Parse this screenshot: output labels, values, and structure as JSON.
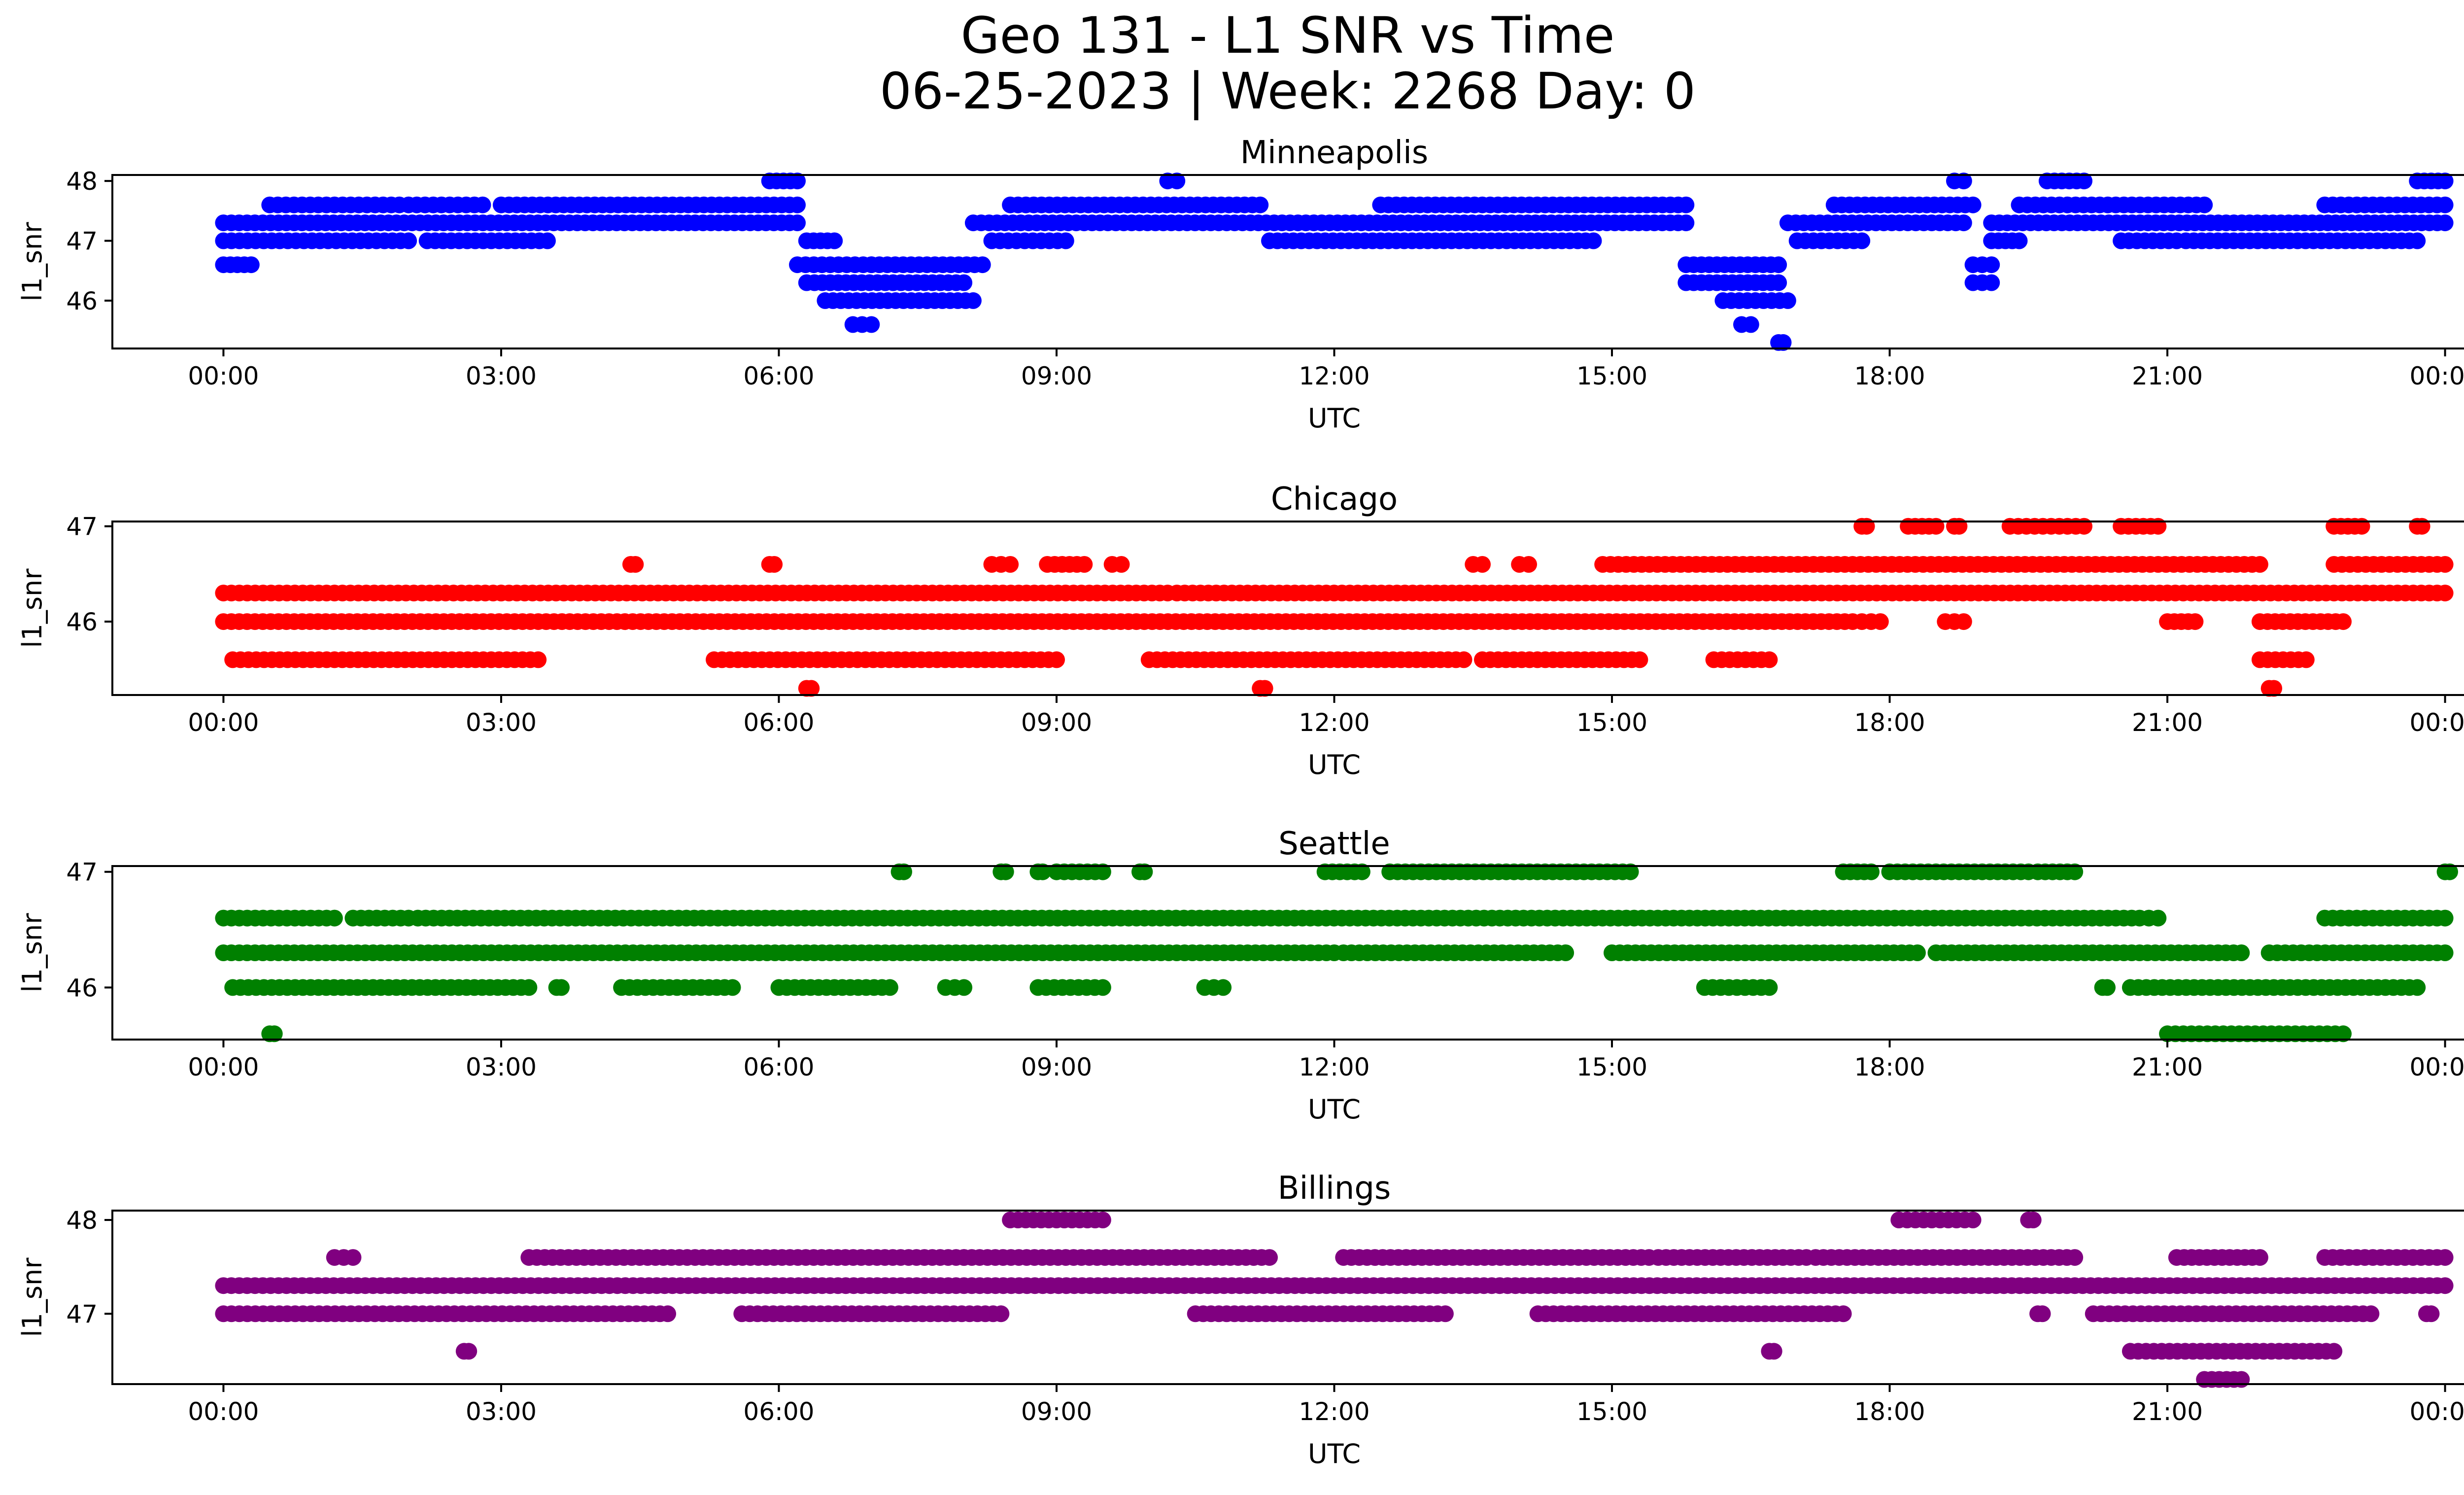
{
  "figure": {
    "title_line1": "Geo 131 - L1 SNR vs Time",
    "title_line2": "06-25-2023 | Week: 2268 Day: 0"
  },
  "chart_data": [
    {
      "type": "scatter",
      "title": "Minneapolis",
      "xlabel": "UTC",
      "ylabel": "l1_snr",
      "color": "#0000ff",
      "ylim": [
        45.2,
        48.1
      ],
      "yticks": [
        46,
        47,
        48
      ],
      "xticks": [
        "00:00",
        "03:00",
        "06:00",
        "09:00",
        "12:00",
        "15:00",
        "18:00",
        "21:00",
        "00:00"
      ],
      "xlim_hours": [
        -1.2,
        25.2
      ],
      "levels": [
        {
          "y": 46.6,
          "x_ranges": [
            [
              0.0,
              0.3
            ],
            [
              6.2,
              7.0
            ],
            [
              7.0,
              8.2
            ],
            [
              15.8,
              16.8
            ],
            [
              18.9,
              19.1
            ]
          ]
        },
        {
          "y": 47.0,
          "x_ranges": [
            [
              0.0,
              2.0
            ],
            [
              2.2,
              3.5
            ],
            [
              6.3,
              6.6
            ],
            [
              8.3,
              9.1
            ],
            [
              11.3,
              12.5
            ],
            [
              12.5,
              14.8
            ],
            [
              17.0,
              17.7
            ],
            [
              19.1,
              19.4
            ],
            [
              20.5,
              21.1
            ],
            [
              21.2,
              23.7
            ]
          ]
        },
        {
          "y": 47.3,
          "x_ranges": [
            [
              0.0,
              6.2
            ],
            [
              8.1,
              15.8
            ],
            [
              16.9,
              18.8
            ],
            [
              19.1,
              24.0
            ]
          ]
        },
        {
          "y": 47.6,
          "x_ranges": [
            [
              0.5,
              1.9
            ],
            [
              2.0,
              2.8
            ],
            [
              3.0,
              6.2
            ],
            [
              8.5,
              11.2
            ],
            [
              12.5,
              15.8
            ],
            [
              17.4,
              18.9
            ],
            [
              19.4,
              21.4
            ],
            [
              22.7,
              24.0
            ]
          ]
        },
        {
          "y": 46.3,
          "x_ranges": [
            [
              6.3,
              8.0
            ],
            [
              15.8,
              16.8
            ],
            [
              18.9,
              19.1
            ]
          ]
        },
        {
          "y": 46.0,
          "x_ranges": [
            [
              6.5,
              7.6
            ],
            [
              7.6,
              8.1
            ],
            [
              16.2,
              16.9
            ]
          ]
        },
        {
          "y": 45.6,
          "x_ranges": [
            [
              6.8,
              7.0
            ],
            [
              16.4,
              16.5
            ]
          ]
        },
        {
          "y": 45.3,
          "x_ranges": [
            [
              16.8,
              16.85
            ]
          ]
        },
        {
          "y": 48.0,
          "x_ranges": [
            [
              5.9,
              6.2
            ],
            [
              10.2,
              10.3
            ],
            [
              18.7,
              18.8
            ],
            [
              19.7,
              20.1
            ],
            [
              23.7,
              24.0
            ]
          ]
        }
      ]
    },
    {
      "type": "scatter",
      "title": "Chicago",
      "xlabel": "UTC",
      "ylabel": "l1_snr",
      "color": "#ff0000",
      "ylim": [
        45.23,
        47.05
      ],
      "yticks": [
        46,
        47
      ],
      "xticks": [
        "00:00",
        "03:00",
        "06:00",
        "09:00",
        "12:00",
        "15:00",
        "18:00",
        "21:00",
        "00:00"
      ],
      "xlim_hours": [
        -1.2,
        25.2
      ],
      "levels": [
        {
          "y": 46.0,
          "x_ranges": [
            [
              0.0,
              17.6
            ],
            [
              17.7,
              17.9
            ],
            [
              18.6,
              18.8
            ],
            [
              21.0,
              21.3
            ],
            [
              22.0,
              22.9
            ]
          ]
        },
        {
          "y": 46.3,
          "x_ranges": [
            [
              0.0,
              3.0
            ],
            [
              3.0,
              10.2
            ],
            [
              10.3,
              21.0
            ],
            [
              21.0,
              24.0
            ]
          ]
        },
        {
          "y": 45.6,
          "x_ranges": [
            [
              0.1,
              3.4
            ],
            [
              5.3,
              9.0
            ],
            [
              10.0,
              13.4
            ],
            [
              13.6,
              15.3
            ],
            [
              16.1,
              16.7
            ],
            [
              22.0,
              22.5
            ]
          ]
        },
        {
          "y": 46.6,
          "x_ranges": [
            [
              4.4,
              4.45
            ],
            [
              5.9,
              5.95
            ],
            [
              8.3,
              8.5
            ],
            [
              8.9,
              9.3
            ],
            [
              9.6,
              9.7
            ],
            [
              13.5,
              13.6
            ],
            [
              14.0,
              14.1
            ],
            [
              14.9,
              16.5
            ],
            [
              16.5,
              22.0
            ],
            [
              22.8,
              24.0
            ]
          ]
        },
        {
          "y": 45.3,
          "x_ranges": [
            [
              6.3,
              6.35
            ],
            [
              11.2,
              11.25
            ],
            [
              22.1,
              22.15
            ]
          ]
        },
        {
          "y": 47.0,
          "x_ranges": [
            [
              17.7,
              17.75
            ],
            [
              18.2,
              18.5
            ],
            [
              18.7,
              18.75
            ],
            [
              19.3,
              20.1
            ],
            [
              20.5,
              20.9
            ],
            [
              22.8,
              23.1
            ],
            [
              23.7,
              23.75
            ]
          ]
        }
      ]
    },
    {
      "type": "scatter",
      "title": "Seattle",
      "xlabel": "UTC",
      "ylabel": "l1_snr",
      "color": "#008000",
      "ylim": [
        45.55,
        47.05
      ],
      "yticks": [
        46,
        47
      ],
      "xticks": [
        "00:00",
        "03:00",
        "06:00",
        "09:00",
        "12:00",
        "15:00",
        "18:00",
        "21:00",
        "00:00"
      ],
      "xlim_hours": [
        -1.2,
        25.2
      ],
      "levels": [
        {
          "y": 46.6,
          "x_ranges": [
            [
              0.0,
              1.2
            ],
            [
              1.4,
              2.0
            ],
            [
              2.1,
              20.7
            ],
            [
              20.8,
              20.9
            ],
            [
              22.7,
              24.0
            ]
          ]
        },
        {
          "y": 46.3,
          "x_ranges": [
            [
              0.0,
              12.0
            ],
            [
              12.1,
              14.5
            ],
            [
              15.0,
              18.3
            ],
            [
              18.5,
              21.8
            ],
            [
              22.1,
              24.0
            ]
          ]
        },
        {
          "y": 46.0,
          "x_ranges": [
            [
              0.1,
              3.3
            ],
            [
              3.6,
              3.65
            ],
            [
              4.3,
              5.5
            ],
            [
              6.0,
              7.2
            ],
            [
              7.8,
              8.0
            ],
            [
              8.8,
              9.5
            ],
            [
              10.6,
              10.8
            ],
            [
              16.0,
              16.7
            ],
            [
              20.3,
              20.35
            ],
            [
              20.6,
              23.7
            ]
          ]
        },
        {
          "y": 45.6,
          "x_ranges": [
            [
              0.5,
              0.55
            ],
            [
              21.0,
              22.9
            ]
          ]
        },
        {
          "y": 47.0,
          "x_ranges": [
            [
              7.3,
              7.35
            ],
            [
              8.4,
              8.45
            ],
            [
              8.8,
              8.85
            ],
            [
              9.0,
              9.5
            ],
            [
              9.9,
              9.95
            ],
            [
              11.9,
              12.3
            ],
            [
              12.6,
              15.2
            ],
            [
              17.5,
              17.8
            ],
            [
              18.0,
              19.5
            ],
            [
              19.6,
              20.0
            ],
            [
              24.0,
              24.05
            ]
          ]
        }
      ]
    },
    {
      "type": "scatter",
      "title": "Billings",
      "xlabel": "UTC",
      "ylabel": "l1_snr",
      "color": "#800080",
      "ylim": [
        46.25,
        48.1
      ],
      "yticks": [
        47,
        48
      ],
      "xticks": [
        "00:00",
        "03:00",
        "06:00",
        "09:00",
        "12:00",
        "15:00",
        "18:00",
        "21:00",
        "00:00"
      ],
      "xlim_hours": [
        -1.2,
        25.2
      ],
      "levels": [
        {
          "y": 47.3,
          "x_ranges": [
            [
              0.0,
              24.0
            ]
          ]
        },
        {
          "y": 47.0,
          "x_ranges": [
            [
              0.0,
              3.7
            ],
            [
              3.7,
              4.8
            ],
            [
              5.6,
              8.4
            ],
            [
              10.5,
              13.2
            ],
            [
              14.2,
              17.5
            ],
            [
              19.6,
              19.65
            ],
            [
              20.2,
              23.2
            ],
            [
              23.8,
              23.85
            ]
          ]
        },
        {
          "y": 47.6,
          "x_ranges": [
            [
              1.2,
              1.4
            ],
            [
              3.3,
              8.0
            ],
            [
              8.0,
              11.3
            ],
            [
              12.1,
              15.4
            ],
            [
              15.5,
              17.1
            ],
            [
              17.2,
              20.0
            ],
            [
              21.1,
              22.0
            ],
            [
              22.7,
              24.0
            ]
          ]
        },
        {
          "y": 48.0,
          "x_ranges": [
            [
              8.5,
              9.5
            ],
            [
              18.1,
              18.9
            ],
            [
              19.5,
              19.55
            ]
          ]
        },
        {
          "y": 46.6,
          "x_ranges": [
            [
              2.6,
              2.65
            ],
            [
              16.7,
              16.75
            ],
            [
              20.6,
              22.8
            ]
          ]
        },
        {
          "y": 46.3,
          "x_ranges": [
            [
              21.4,
              21.8
            ]
          ]
        }
      ]
    }
  ]
}
